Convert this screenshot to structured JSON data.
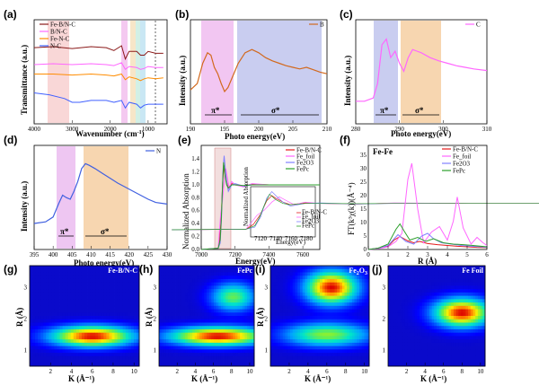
{
  "chart_data": [
    {
      "panel": "(a)",
      "type": "line",
      "xlabel": "Wavenumber (cm-1)",
      "ylabel": "Transmittance (a.u.)",
      "xticks": [
        "4000",
        "3000",
        "2000",
        "1000"
      ],
      "xlim": [
        4000,
        500
      ],
      "series": [
        {
          "name": "Fe-B/N-C",
          "color": "#8b1a1a",
          "x": [
            4000,
            3500,
            3000,
            2500,
            2100,
            1900,
            1700,
            1600,
            1500,
            1300,
            1200,
            1100,
            1000,
            800,
            600
          ],
          "y": [
            0.78,
            0.79,
            0.77,
            0.79,
            0.78,
            0.75,
            0.8,
            0.66,
            0.74,
            0.74,
            0.7,
            0.7,
            0.74,
            0.72,
            0.72
          ]
        },
        {
          "name": "B/N-C",
          "color": "#ff66ff",
          "x": [
            4000,
            3500,
            3000,
            2500,
            2100,
            1900,
            1700,
            1600,
            1500,
            1300,
            1200,
            1100,
            1000,
            800,
            600
          ],
          "y": [
            0.6,
            0.61,
            0.6,
            0.61,
            0.6,
            0.59,
            0.62,
            0.55,
            0.58,
            0.57,
            0.55,
            0.56,
            0.58,
            0.57,
            0.57
          ]
        },
        {
          "name": "Fe-N-C",
          "color": "#ff8c00",
          "x": [
            4000,
            3500,
            3000,
            2500,
            2100,
            1900,
            1700,
            1600,
            1500,
            1300,
            1200,
            1100,
            1000,
            800,
            600
          ],
          "y": [
            0.5,
            0.5,
            0.49,
            0.5,
            0.49,
            0.48,
            0.5,
            0.44,
            0.47,
            0.45,
            0.43,
            0.45,
            0.46,
            0.45,
            0.46
          ]
        },
        {
          "name": "N-C",
          "color": "#4060ff",
          "x": [
            4000,
            3600,
            3200,
            3000,
            2800,
            2500,
            2100,
            1900,
            1700,
            1600,
            1500,
            1300,
            1200,
            1100,
            1000,
            800,
            600
          ],
          "y": [
            0.3,
            0.28,
            0.24,
            0.2,
            0.2,
            0.22,
            0.22,
            0.2,
            0.22,
            0.14,
            0.2,
            0.18,
            0.14,
            0.17,
            0.18,
            0.18,
            0.18
          ]
        }
      ]
    },
    {
      "panel": "(b)",
      "type": "line",
      "xlabel": "Photo energy(eV)",
      "ylabel": "Intensity (a.u.)",
      "xticks": [
        "190",
        "195",
        "200",
        "205",
        "210"
      ],
      "xlim": [
        190,
        210
      ],
      "annotations": [
        "π*",
        "σ*"
      ],
      "series": [
        {
          "name": "B",
          "color": "#d2691e",
          "x": [
            190,
            191,
            191.8,
            192.5,
            193,
            193.5,
            194,
            194.5,
            195,
            195.5,
            196,
            196.5,
            197,
            198,
            199,
            200,
            201,
            202,
            203,
            204,
            205,
            206,
            207,
            208,
            209,
            210
          ],
          "y": [
            0.22,
            0.3,
            0.55,
            0.68,
            0.65,
            0.5,
            0.42,
            0.3,
            0.2,
            0.25,
            0.35,
            0.45,
            0.55,
            0.68,
            0.72,
            0.68,
            0.62,
            0.58,
            0.55,
            0.52,
            0.5,
            0.48,
            0.5,
            0.47,
            0.44,
            0.42
          ]
        }
      ]
    },
    {
      "panel": "(c)",
      "type": "line",
      "xlabel": "Photo energy(eV)",
      "ylabel": "Intensity (a.u.)",
      "xticks": [
        "280",
        "290",
        "300",
        "310"
      ],
      "xlim": [
        280,
        310
      ],
      "annotations": [
        "π*",
        "σ*"
      ],
      "series": [
        {
          "name": "C",
          "color": "#ff66ff",
          "x": [
            280,
            282,
            284,
            285,
            286,
            287,
            288,
            289,
            290,
            291,
            292,
            293,
            294,
            295,
            297,
            299,
            301,
            303,
            305,
            307,
            310
          ],
          "y": [
            0.08,
            0.08,
            0.12,
            0.3,
            0.78,
            0.85,
            0.62,
            0.7,
            0.55,
            0.45,
            0.62,
            0.72,
            0.7,
            0.68,
            0.62,
            0.58,
            0.55,
            0.52,
            0.5,
            0.48,
            0.46
          ]
        }
      ]
    },
    {
      "panel": "(d)",
      "type": "line",
      "xlabel": "Photo energy(eV)",
      "ylabel": "Intensity (a.u.)",
      "xticks": [
        "395",
        "400",
        "405",
        "410",
        "415",
        "420",
        "425",
        "430"
      ],
      "xlim": [
        395,
        430
      ],
      "annotations": [
        "π*",
        "σ*"
      ],
      "series": [
        {
          "name": "N",
          "color": "#4060e0",
          "x": [
            395,
            398,
            400,
            401.5,
            402.5,
            403.5,
            404.5,
            405.5,
            406.5,
            407.5,
            408.5,
            409.5,
            411,
            413,
            415,
            417,
            419,
            421,
            423,
            425,
            427,
            430
          ],
          "y": [
            0.1,
            0.12,
            0.18,
            0.35,
            0.45,
            0.42,
            0.4,
            0.5,
            0.62,
            0.78,
            0.84,
            0.82,
            0.78,
            0.72,
            0.66,
            0.6,
            0.55,
            0.5,
            0.45,
            0.4,
            0.36,
            0.34
          ]
        }
      ]
    },
    {
      "panel": "(e)",
      "type": "line",
      "xlabel": "Energy(eV)",
      "ylabel": "Normalized Absorption",
      "xticks": [
        "7000",
        "7200",
        "7400",
        "7600"
      ],
      "yticks": [
        "0.0",
        "0.2",
        "0.4",
        "0.6",
        "0.8",
        "1.0",
        "1.2",
        "1.4"
      ],
      "xlim": [
        7000,
        7700
      ],
      "ylim": [
        0,
        1.5
      ],
      "series": [
        {
          "name": "Fe-B/N-C",
          "color": "#e41a1c",
          "x": [
            7000,
            7100,
            7110,
            7120,
            7128,
            7135,
            7140,
            7150,
            7160,
            7180,
            7200,
            7250,
            7300,
            7400,
            7500,
            7600,
            7700
          ],
          "y": [
            0,
            0.02,
            0.2,
            0.6,
            1.1,
            1.3,
            1.2,
            1.05,
            0.95,
            1.02,
            1.0,
            0.98,
            1.01,
            1.0,
            1.0,
            1.0,
            1.0
          ]
        },
        {
          "name": "Fe_foil",
          "color": "#ff66ff",
          "x": [
            7000,
            7100,
            7108,
            7115,
            7125,
            7135,
            7145,
            7155,
            7165,
            7180,
            7200,
            7250,
            7300,
            7400,
            7500,
            7600,
            7700
          ],
          "y": [
            0,
            0.02,
            0.3,
            0.55,
            0.75,
            1.05,
            1.25,
            1.1,
            0.95,
            1.05,
            1.0,
            0.97,
            1.02,
            1.0,
            1.0,
            1.0,
            1.0
          ]
        },
        {
          "name": "Fe2O3",
          "color": "#8080ff",
          "x": [
            7000,
            7100,
            7112,
            7120,
            7128,
            7135,
            7142,
            7150,
            7160,
            7180,
            7200,
            7250,
            7300,
            7400,
            7500,
            7600,
            7700
          ],
          "y": [
            0,
            0.02,
            0.1,
            0.5,
            1.2,
            1.45,
            1.25,
            1.05,
            0.9,
            1.0,
            1.02,
            0.98,
            1.0,
            1.0,
            1.0,
            1.0,
            1.0
          ]
        },
        {
          "name": "FePc",
          "color": "#2ca02c",
          "x": [
            7000,
            7100,
            7112,
            7118,
            7125,
            7132,
            7140,
            7150,
            7160,
            7180,
            7200,
            7250,
            7300,
            7400,
            7500,
            7600,
            7700
          ],
          "y": [
            0,
            0.02,
            0.15,
            0.45,
            0.95,
            1.35,
            1.15,
            1.0,
            0.95,
            1.0,
            1.0,
            0.99,
            1.0,
            1.0,
            1.0,
            1.0,
            1.0
          ]
        }
      ]
    },
    {
      "panel": "(f)",
      "type": "line",
      "xlabel": "R (Å)",
      "ylabel": "FT(k3χ(k))(Å-4)",
      "xticks": [
        "0",
        "1",
        "2",
        "3",
        "4",
        "5",
        "6"
      ],
      "yticks": [
        "0",
        "5",
        "10",
        "15",
        "20",
        "25",
        "30",
        "35"
      ],
      "xlim": [
        0,
        6
      ],
      "ylim": [
        0,
        36
      ],
      "annotations": [
        "Fe-Fe"
      ],
      "series": [
        {
          "name": "Fe-B/N-C",
          "color": "#e41a1c",
          "x": [
            0,
            0.5,
            1.0,
            1.3,
            1.6,
            2.0,
            2.3,
            2.6,
            3.0,
            3.5,
            4.0,
            4.5,
            5.0,
            5.5,
            6.0
          ],
          "y": [
            0,
            0.5,
            1.2,
            3.5,
            4.8,
            3.2,
            2.5,
            3.0,
            2.2,
            1.8,
            1.5,
            1.2,
            1.0,
            0.8,
            0.7
          ]
        },
        {
          "name": "Fe_foil",
          "color": "#ff66ff",
          "x": [
            0,
            0.5,
            1.0,
            1.4,
            1.7,
            2.0,
            2.2,
            2.5,
            2.8,
            3.2,
            3.6,
            4.0,
            4.3,
            4.5,
            4.8,
            5.2,
            5.5,
            5.8,
            6.0
          ],
          "y": [
            0,
            0.3,
            1.0,
            3.0,
            6.0,
            26,
            32,
            15,
            2.5,
            6.5,
            8.5,
            3.5,
            10.5,
            19.5,
            8.0,
            2.0,
            4.5,
            2.5,
            1.5
          ]
        },
        {
          "name": "Fe2O3",
          "color": "#8080ff",
          "x": [
            0,
            0.5,
            1.0,
            1.5,
            1.9,
            2.3,
            2.7,
            3.0,
            3.3,
            3.7,
            4.2,
            4.7,
            5.2,
            5.7,
            6.0
          ],
          "y": [
            0,
            0.5,
            1.5,
            5.5,
            3.0,
            2.0,
            5.0,
            6.0,
            4.0,
            2.5,
            2.0,
            1.5,
            1.2,
            1.0,
            0.8
          ]
        },
        {
          "name": "FePc",
          "color": "#2ca02c",
          "x": [
            0,
            0.5,
            1.0,
            1.4,
            1.6,
            1.8,
            2.1,
            2.5,
            2.9,
            3.3,
            3.8,
            4.3,
            4.8,
            5.3,
            6.0
          ],
          "y": [
            0,
            0.5,
            2.0,
            7.5,
            9.5,
            7.0,
            3.5,
            4.5,
            3.0,
            4.0,
            2.5,
            2.0,
            1.8,
            1.5,
            1.0
          ]
        }
      ]
    },
    {
      "panel": "(g)",
      "type": "heatmap",
      "title": "Fe-B/N-C",
      "xlabel": "K (Å-1)",
      "ylabel": "R (Å)",
      "xticks": [
        "2",
        "4",
        "6",
        "8",
        "10"
      ],
      "yticks": [
        "1",
        "2",
        "3"
      ],
      "peaks": [
        {
          "k": 6.0,
          "r": 1.45,
          "amp": 1.0,
          "sk": 2.6,
          "sr": 0.22
        }
      ]
    },
    {
      "panel": "(h)",
      "type": "heatmap",
      "title": "FePc",
      "xlabel": "K (Å-1)",
      "ylabel": "R (Å)",
      "xticks": [
        "2",
        "4",
        "6",
        "8",
        "10"
      ],
      "yticks": [
        "1",
        "2",
        "3"
      ],
      "peaks": [
        {
          "k": 6.5,
          "r": 1.45,
          "amp": 1.0,
          "sk": 3.5,
          "sr": 0.2
        },
        {
          "k": 8.2,
          "r": 2.7,
          "amp": 0.55,
          "sk": 1.6,
          "sr": 0.3
        }
      ]
    },
    {
      "panel": "(i)",
      "type": "heatmap",
      "title": "Fe2O3",
      "xlabel": "K (Å-1)",
      "ylabel": "R (Å)",
      "xticks": [
        "2",
        "4",
        "6",
        "8",
        "10"
      ],
      "yticks": [
        "1",
        "2",
        "3"
      ],
      "peaks": [
        {
          "k": 6.5,
          "r": 3.0,
          "amp": 1.0,
          "sk": 1.8,
          "sr": 0.35
        },
        {
          "k": 6.0,
          "r": 1.5,
          "amp": 0.6,
          "sk": 3.0,
          "sr": 0.25
        }
      ]
    },
    {
      "panel": "(j)",
      "type": "heatmap",
      "title": "Fe Foil",
      "xlabel": "K (Å-1)",
      "ylabel": "R (Å)",
      "xticks": [
        "2",
        "4",
        "6",
        "8",
        "10"
      ],
      "yticks": [
        "1",
        "2",
        "3"
      ],
      "peaks": [
        {
          "k": 8.0,
          "r": 2.2,
          "amp": 1.0,
          "sk": 2.0,
          "sr": 0.3
        }
      ]
    }
  ],
  "labels": {
    "a": "(a)",
    "b": "(b)",
    "c": "(c)",
    "d": "(d)",
    "e": "(e)",
    "f": "(f)",
    "g": "(g)",
    "h": "(h)",
    "i": "(i)",
    "j": "(j)",
    "pi": "π*",
    "sigma": "σ*",
    "wavenumber": "Wavenumber (cm",
    "wavenumber_sup": "-1",
    "wavenumber_end": ")",
    "transmittance": "Transmittance (a.u.)",
    "intensity": "Intensity (a.u.)",
    "photo_energy": "Photo energy(eV)",
    "energy": "Energy(eV)",
    "norm_abs": "Normalized Absorption",
    "r_axis": "R (Å)",
    "ft_axis": "FT(k³χ(k))(Å⁻⁴)",
    "fe_fe": "Fe-Fe",
    "k_axis": "K (Å⁻¹)",
    "r_axis_w": "R (Å)"
  },
  "inset": {
    "ylabel": "Normalized Absorption",
    "xlabel": "Energy(eV)",
    "xticks": [
      "7120",
      "7140",
      "7160",
      "7180"
    ],
    "legend": [
      "Fe-B/N-C",
      "Fe_foil",
      "Fe2O3",
      "FePc"
    ]
  }
}
